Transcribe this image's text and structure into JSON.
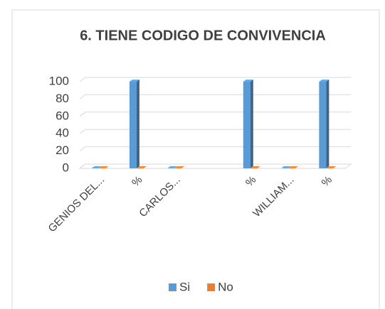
{
  "chart_data": {
    "type": "bar3d",
    "title": "6. TIENE CODIGO DE CONVIVENCIA",
    "categories": [
      "GENIOS DEL...",
      "%",
      "CARLOS...",
      null,
      "%",
      "WILLIAM...",
      "%"
    ],
    "series": [
      {
        "name": "Si",
        "color": "#5b9bd5",
        "values": [
          0,
          100,
          0,
          null,
          100,
          0,
          100
        ]
      },
      {
        "name": "No",
        "color": "#ed7d31",
        "values": [
          0,
          0,
          0,
          null,
          0,
          0,
          0
        ]
      }
    ],
    "ylim": [
      0,
      100
    ],
    "yticks": [
      0,
      20,
      40,
      60,
      80,
      100
    ],
    "grid": true,
    "legend": "bottom"
  }
}
